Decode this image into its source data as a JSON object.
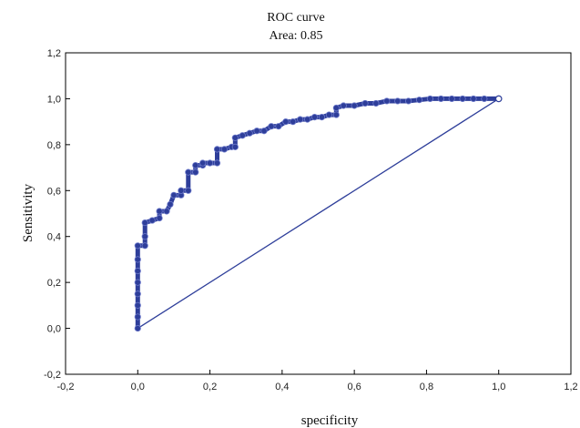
{
  "chart_data": {
    "type": "line",
    "title": "ROC curve",
    "subtitle": "Area: 0.85",
    "xlabel": "specificity",
    "ylabel": "Sensitivity",
    "xlim": [
      -0.2,
      1.2
    ],
    "ylim": [
      -0.2,
      1.2
    ],
    "xticks": [
      "-0,2",
      "0,0",
      "0,2",
      "0,4",
      "0,6",
      "0,8",
      "1,0",
      "1,2"
    ],
    "yticks": [
      "-0,2",
      "0,0",
      "0,2",
      "0,4",
      "0,6",
      "0,8",
      "1,0",
      "1,2"
    ],
    "grid": false,
    "colors": {
      "series": "#2e3e9a",
      "frame": "#000000"
    },
    "series": [
      {
        "values": [
          [
            0.0,
            0.0
          ],
          [
            0.0,
            0.05
          ],
          [
            0.0,
            0.1
          ],
          [
            0.0,
            0.15
          ],
          [
            0.0,
            0.2
          ],
          [
            0.0,
            0.25
          ],
          [
            0.0,
            0.3
          ],
          [
            0.0,
            0.36
          ],
          [
            0.02,
            0.36
          ],
          [
            0.02,
            0.4
          ],
          [
            0.02,
            0.46
          ],
          [
            0.04,
            0.47
          ],
          [
            0.06,
            0.48
          ],
          [
            0.06,
            0.51
          ],
          [
            0.08,
            0.51
          ],
          [
            0.09,
            0.54
          ],
          [
            0.1,
            0.58
          ],
          [
            0.12,
            0.58
          ],
          [
            0.12,
            0.6
          ],
          [
            0.14,
            0.6
          ],
          [
            0.14,
            0.68
          ],
          [
            0.16,
            0.68
          ],
          [
            0.16,
            0.71
          ],
          [
            0.18,
            0.71
          ],
          [
            0.18,
            0.72
          ],
          [
            0.2,
            0.72
          ],
          [
            0.22,
            0.72
          ],
          [
            0.22,
            0.78
          ],
          [
            0.24,
            0.78
          ],
          [
            0.26,
            0.79
          ],
          [
            0.27,
            0.79
          ],
          [
            0.27,
            0.83
          ],
          [
            0.29,
            0.84
          ],
          [
            0.31,
            0.85
          ],
          [
            0.33,
            0.86
          ],
          [
            0.35,
            0.86
          ],
          [
            0.37,
            0.88
          ],
          [
            0.39,
            0.88
          ],
          [
            0.41,
            0.9
          ],
          [
            0.43,
            0.9
          ],
          [
            0.45,
            0.91
          ],
          [
            0.47,
            0.91
          ],
          [
            0.49,
            0.92
          ],
          [
            0.51,
            0.92
          ],
          [
            0.53,
            0.93
          ],
          [
            0.55,
            0.93
          ],
          [
            0.55,
            0.96
          ],
          [
            0.57,
            0.97
          ],
          [
            0.6,
            0.97
          ],
          [
            0.63,
            0.98
          ],
          [
            0.66,
            0.98
          ],
          [
            0.69,
            0.99
          ],
          [
            0.72,
            0.99
          ],
          [
            0.75,
            0.99
          ],
          [
            0.78,
            0.995
          ],
          [
            0.81,
            1.0
          ],
          [
            0.84,
            1.0
          ],
          [
            0.87,
            1.0
          ],
          [
            0.9,
            1.0
          ],
          [
            0.93,
            1.0
          ],
          [
            0.96,
            1.0
          ],
          [
            1.0,
            1.0
          ]
        ]
      },
      {
        "values": [
          [
            0.0,
            0.0
          ],
          [
            1.0,
            1.0
          ]
        ]
      }
    ]
  }
}
